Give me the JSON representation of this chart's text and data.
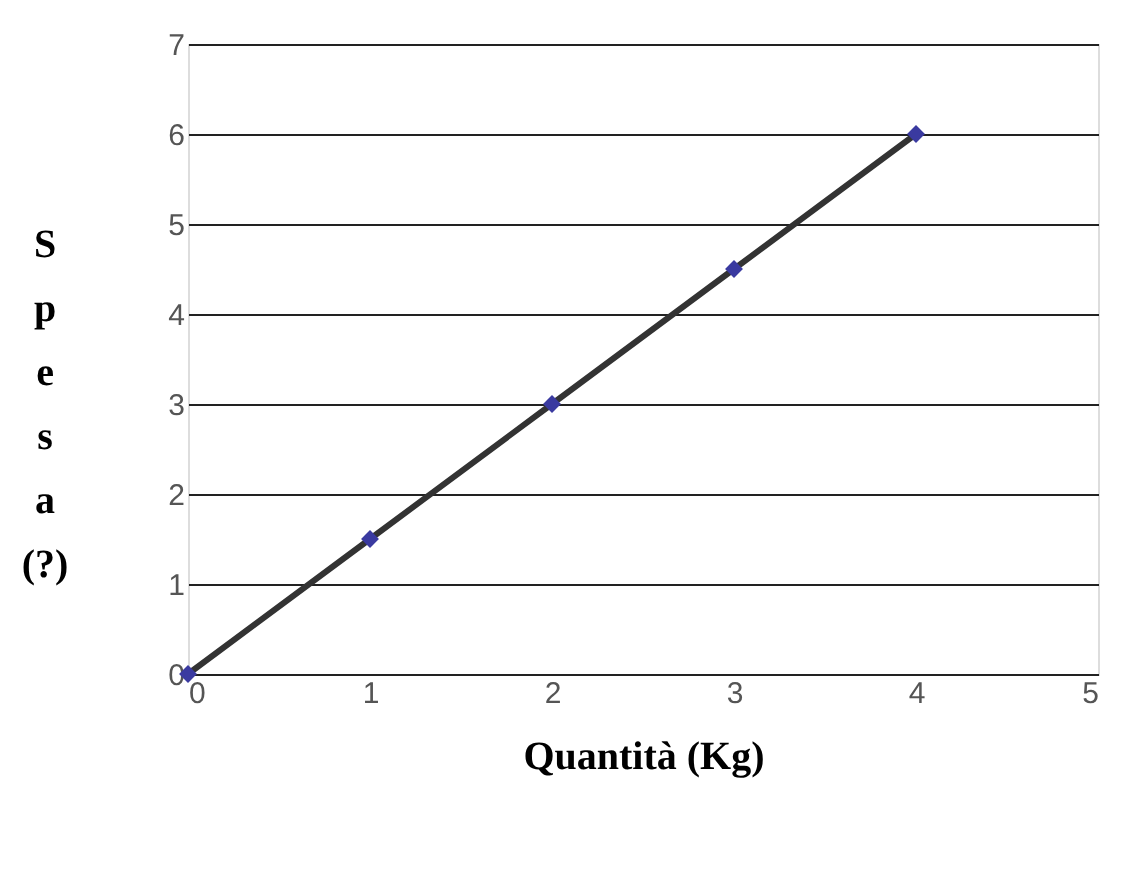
{
  "chart_data": {
    "type": "line",
    "xlabel": "Quantità (Kg)",
    "ylabel": "Spesa (?)",
    "x": [
      0,
      1,
      2,
      3,
      4
    ],
    "series": [
      {
        "color": "#333333",
        "values": [
          0,
          1.5,
          3,
          4.5,
          6
        ],
        "marker": "none"
      },
      {
        "type": "scatter",
        "color": "#3a3aa0",
        "values": [
          0,
          1.5,
          3,
          4.5,
          6
        ],
        "marker": "diamond"
      }
    ],
    "xlim": [
      0,
      5
    ],
    "xticks": [
      0,
      1,
      2,
      3,
      4,
      5
    ],
    "ylim": [
      0,
      7
    ],
    "yticks": [
      0,
      1,
      2,
      3,
      4,
      5,
      6,
      7
    ],
    "grid": "y"
  }
}
